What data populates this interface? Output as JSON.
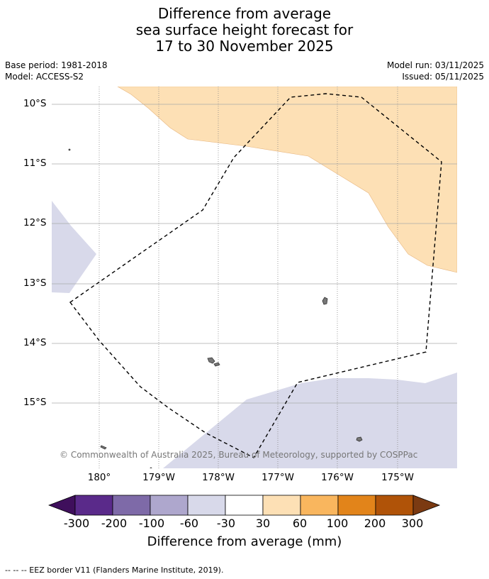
{
  "title": {
    "line1": "Difference from average",
    "line2": "sea surface height forecast for",
    "line3": "17 to 30 November 2025"
  },
  "meta": {
    "base_period": "Base period: 1981-2018",
    "model": "Model: ACCESS-S2",
    "model_run": "Model run: 03/11/2025",
    "issued": "Issued: 05/11/2025"
  },
  "axes": {
    "lat_labels": [
      "10°S",
      "11°S",
      "12°S",
      "13°S",
      "14°S",
      "15°S"
    ],
    "lon_labels": [
      "180°",
      "179°W",
      "178°W",
      "177°W",
      "176°W",
      "175°W"
    ]
  },
  "copyright": "© Commonwealth of Australia 2025, Bureau of Meteorology, supported by COSPPac",
  "colorbar": {
    "ticks": [
      "-300",
      "-200",
      "-100",
      "-60",
      "-30",
      "30",
      "60",
      "100",
      "200",
      "300"
    ],
    "colors": [
      "#3f0f5c",
      "#5a2a8a",
      "#7e6aa8",
      "#aea7cd",
      "#d8d9ea",
      "#ffffff",
      "#fde0b5",
      "#f9b65e",
      "#e2841a",
      "#b05308",
      "#7b3a12"
    ],
    "label": "Difference from average (mm)"
  },
  "footnote": "--  --  -- EEZ border V11 (Flanders Marine Institute, 2019).",
  "map_colors": {
    "positive_fill": "#fde0b5",
    "negative_fill": "#d8d9ea",
    "grid": "#999999",
    "land": "#777777"
  }
}
